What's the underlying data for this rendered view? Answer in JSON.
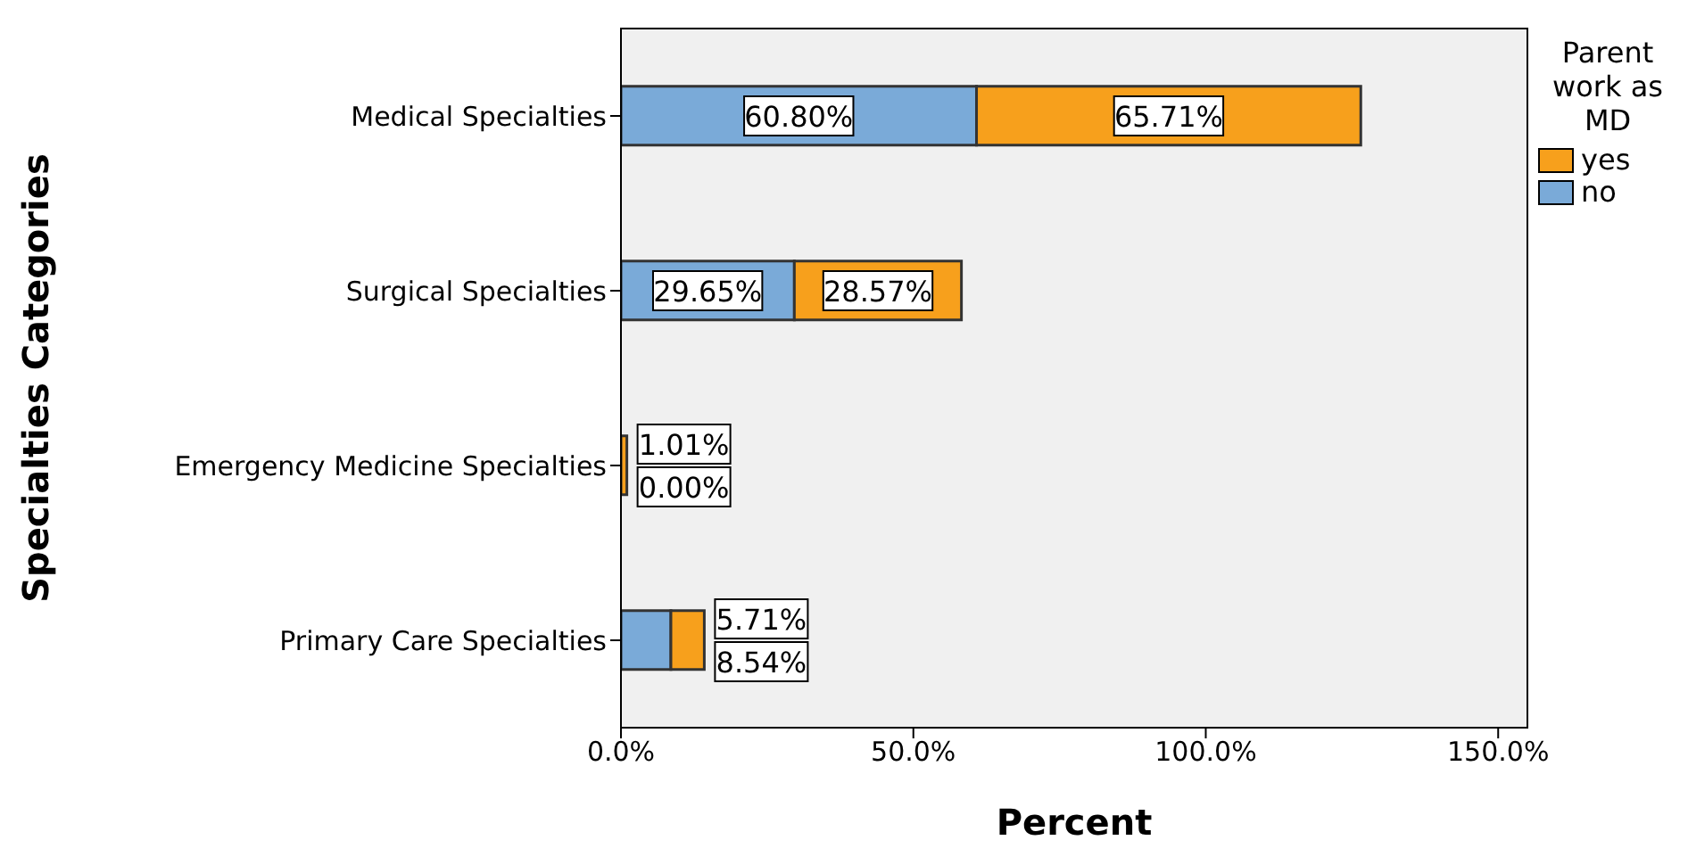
{
  "chart_data": {
    "type": "bar",
    "orientation": "horizontal",
    "stacked": true,
    "categories": [
      "Medical Specialties",
      "Surgical Specialties",
      "Emergency Medicine Specialties",
      "Primary Care Specialties"
    ],
    "series": [
      {
        "name": "no",
        "color": "#7aaad8",
        "values": [
          60.8,
          29.65,
          0,
          8.54
        ],
        "value_labels": [
          "60.80%",
          "29.65%",
          "0.00%",
          "8.54%"
        ]
      },
      {
        "name": "yes",
        "color": "#f7a01c",
        "values": [
          65.71,
          28.57,
          1.01,
          5.71
        ],
        "value_labels": [
          "65.71%",
          "28.57%",
          "1.01%",
          "5.71%"
        ]
      }
    ],
    "xlim": [
      0,
      155
    ],
    "xticks": [
      {
        "value": 0,
        "label": "0.0%"
      },
      {
        "value": 50,
        "label": "50.0%"
      },
      {
        "value": 100,
        "label": "100.0%"
      },
      {
        "value": 150,
        "label": "150.0%"
      }
    ],
    "xlabel": "Percent",
    "ylabel": "Specialties Categories",
    "legend_title": "Parent work as MD",
    "legend": "top right"
  }
}
